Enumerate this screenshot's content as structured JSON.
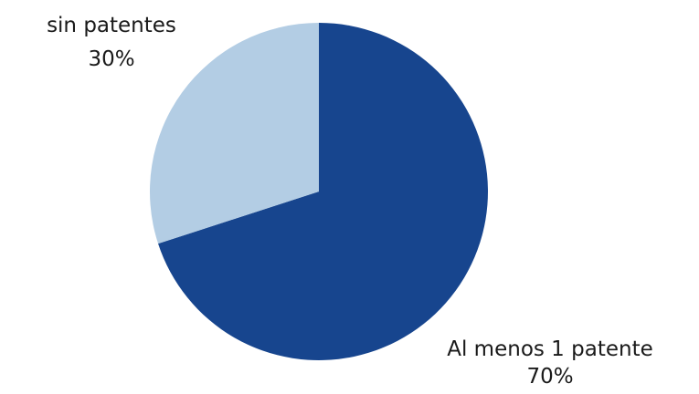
{
  "chart_data": {
    "type": "pie",
    "title": "",
    "slices": [
      {
        "label": "Al menos 1 patente",
        "value": 70,
        "value_label": "70%",
        "color": "#17458e"
      },
      {
        "label": "sin patentes",
        "value": 30,
        "value_label": "30%",
        "color": "#b3cde4"
      }
    ],
    "start_angle": "12 o'clock",
    "direction": "clockwise",
    "legend": "none"
  }
}
